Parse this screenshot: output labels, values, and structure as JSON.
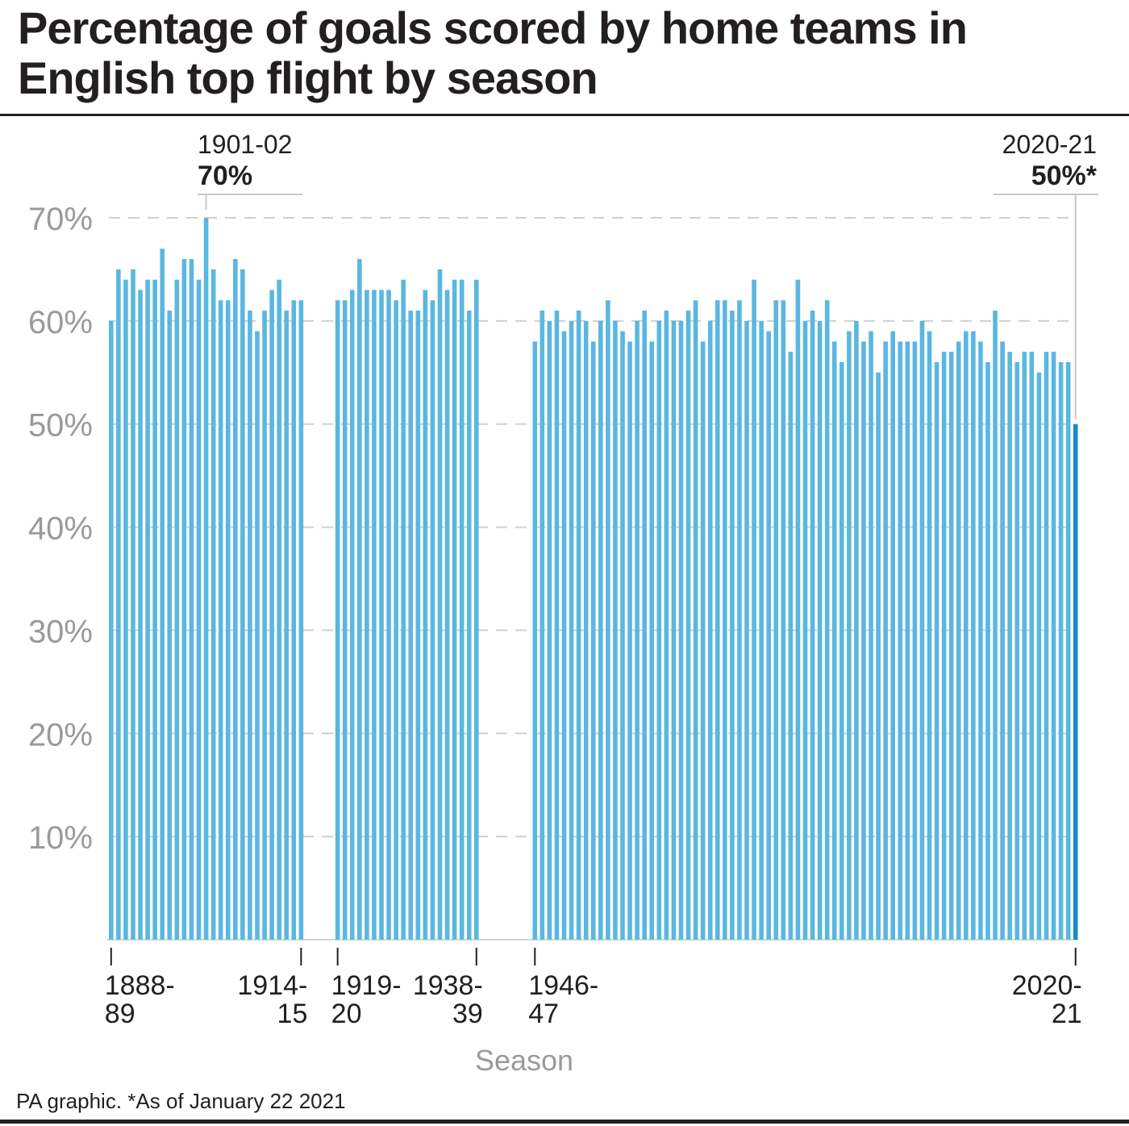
{
  "title": "Percentage of goals scored by home teams in English top flight by season",
  "source": "PA graphic. *As of January 22 2021",
  "colors": {
    "bar": "#5ab7e0",
    "highlight_bar": "#1a8ac8",
    "grid": "#d0d0d0",
    "axis_text": "#9a9a9a",
    "text": "#231f20"
  },
  "chart_data": {
    "type": "bar",
    "xlabel": "Season",
    "ylabel": "",
    "ylim": [
      0,
      70
    ],
    "yticks": [
      10,
      20,
      30,
      40,
      50,
      60,
      70
    ],
    "ytick_labels": [
      "10%",
      "20%",
      "30%",
      "40%",
      "50%",
      "60%",
      "70%"
    ],
    "grid": true,
    "segments": [
      {
        "start": "1888-89",
        "end": "1914-15",
        "start_label": [
          "1888-",
          "89"
        ],
        "end_label": [
          "1914-",
          "15"
        ],
        "values": [
          60,
          65,
          64,
          65,
          63,
          64,
          64,
          67,
          61,
          64,
          66,
          66,
          64,
          70,
          65,
          62,
          62,
          66,
          65,
          61,
          59,
          61,
          63,
          64,
          61,
          62,
          62
        ]
      },
      {
        "start": "1919-20",
        "end": "1938-39",
        "start_label": [
          "1919-",
          "20"
        ],
        "end_label": [
          "1938-",
          "39"
        ],
        "values": [
          62,
          62,
          63,
          66,
          63,
          63,
          63,
          63,
          62,
          64,
          61,
          61,
          63,
          62,
          65,
          63,
          64,
          64,
          61,
          64
        ]
      },
      {
        "start": "1946-47",
        "end": "2020-21",
        "start_label": [
          "1946-",
          "47"
        ],
        "end_label": [
          "2020-",
          "21"
        ],
        "values": [
          58,
          61,
          60,
          61,
          59,
          60,
          61,
          60,
          58,
          60,
          62,
          60,
          59,
          58,
          60,
          61,
          58,
          60,
          61,
          60,
          60,
          61,
          62,
          58,
          60,
          62,
          62,
          61,
          62,
          60,
          64,
          60,
          59,
          62,
          62,
          57,
          64,
          60,
          61,
          60,
          62,
          58,
          56,
          59,
          60,
          58,
          59,
          55,
          58,
          59,
          58,
          58,
          58,
          60,
          59,
          56,
          57,
          57,
          58,
          59,
          59,
          58,
          56,
          61,
          58,
          57,
          56,
          57,
          57,
          55,
          57,
          57,
          56,
          56,
          50
        ]
      }
    ],
    "annotations": [
      {
        "season": "1901-02",
        "value": "70%"
      },
      {
        "season": "2020-21",
        "value": "50%*"
      }
    ]
  }
}
